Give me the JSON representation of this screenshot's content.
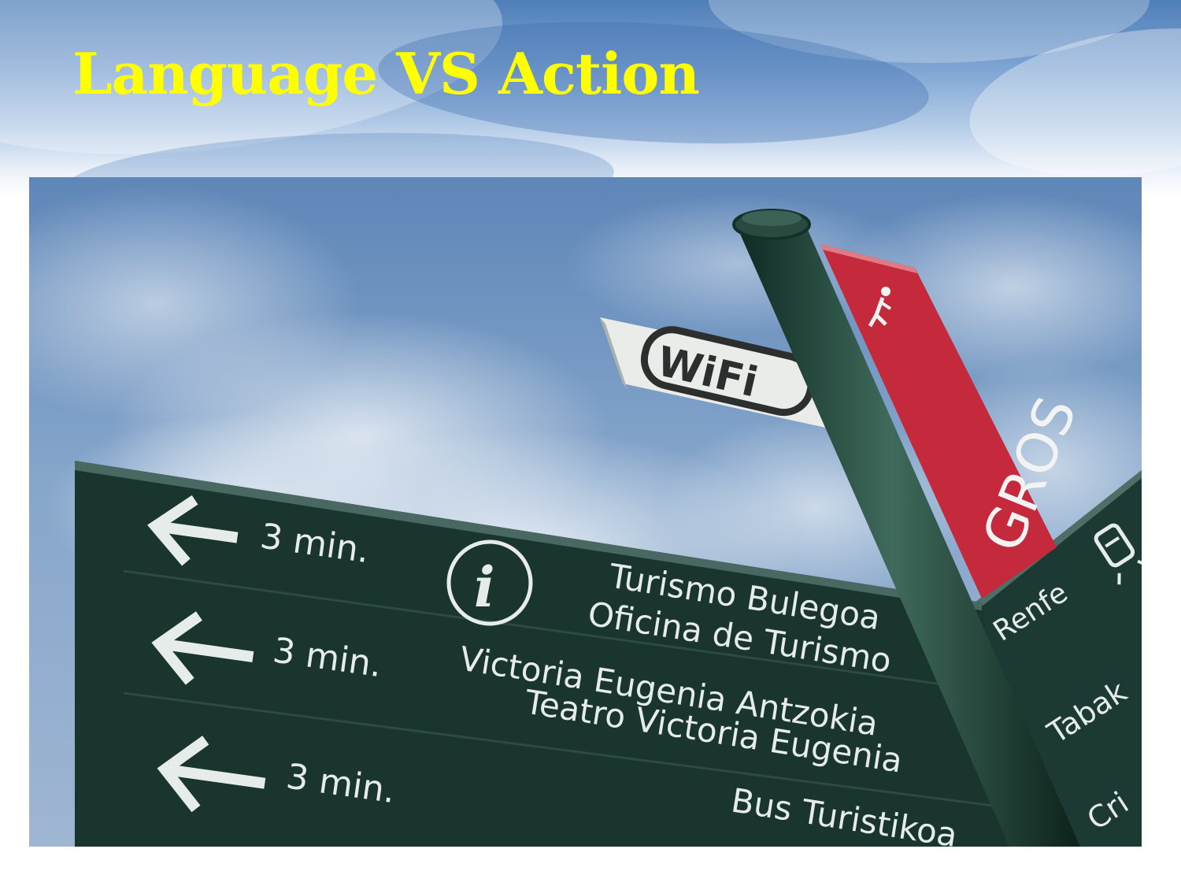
{
  "slide": {
    "title": "Language VS Action"
  },
  "photo": {
    "wifi_sign": "WiFi",
    "post_sign": "GROS",
    "rows": [
      {
        "time": "3 min.",
        "line1": "Turismo Bulegoa",
        "line2": "Oficina de Turismo"
      },
      {
        "time": "3 min.",
        "line1": "Victoria Eugenia Antzokia",
        "line2": "Teatro Victoria Eugenia"
      },
      {
        "time": "3 min.",
        "line1": "Bus Turistikoa"
      }
    ],
    "right_sign": [
      "Renfe",
      "Tabak",
      "Cri"
    ]
  }
}
